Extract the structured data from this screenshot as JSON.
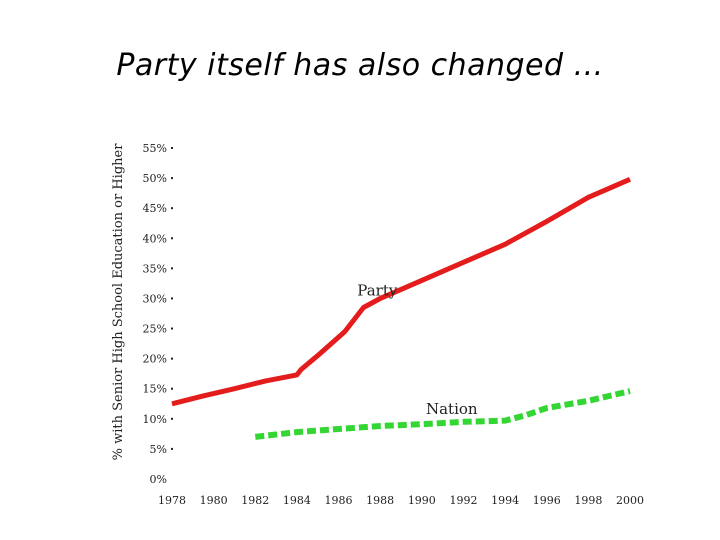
{
  "slide": {
    "title": "Party itself has also changed ..."
  },
  "chart_data": {
    "type": "line",
    "title": "",
    "xlabel": "",
    "ylabel": "% with Senior High School Education or Higher",
    "xlim": [
      1978,
      2000
    ],
    "ylim": [
      0,
      55
    ],
    "x_ticks": [
      "1978",
      "1980",
      "1982",
      "1984",
      "1986",
      "1988",
      "1990",
      "1992",
      "1994",
      "1996",
      "1998",
      "2000"
    ],
    "y_ticks": [
      "0%",
      "5%",
      "10%",
      "15%",
      "20%",
      "25%",
      "30%",
      "35%",
      "40%",
      "45%",
      "50%",
      "55%"
    ],
    "grid": false,
    "legend": "inline labels",
    "series": [
      {
        "name": "Party",
        "color": "#e41c1c",
        "style": "solid",
        "x": [
          1978,
          1979.5,
          1981,
          1982.5,
          1984,
          1984.2,
          1985,
          1986.3,
          1987.2,
          1988,
          1990,
          1992,
          1994,
          1996,
          1998,
          2000
        ],
        "y": [
          12.5,
          13.8,
          15.0,
          16.3,
          17.3,
          18.2,
          20.5,
          24.5,
          28.5,
          30.0,
          33.0,
          36.0,
          39.0,
          42.8,
          46.8,
          49.8
        ]
      },
      {
        "name": "Nation",
        "color": "#33d633",
        "style": "dashed",
        "x": [
          1982,
          1984,
          1986,
          1988,
          1990,
          1992,
          1994,
          1995,
          1996,
          1998,
          2000
        ],
        "y": [
          7.0,
          7.8,
          8.3,
          8.8,
          9.1,
          9.5,
          9.7,
          10.6,
          11.8,
          13.0,
          14.6
        ]
      }
    ]
  }
}
